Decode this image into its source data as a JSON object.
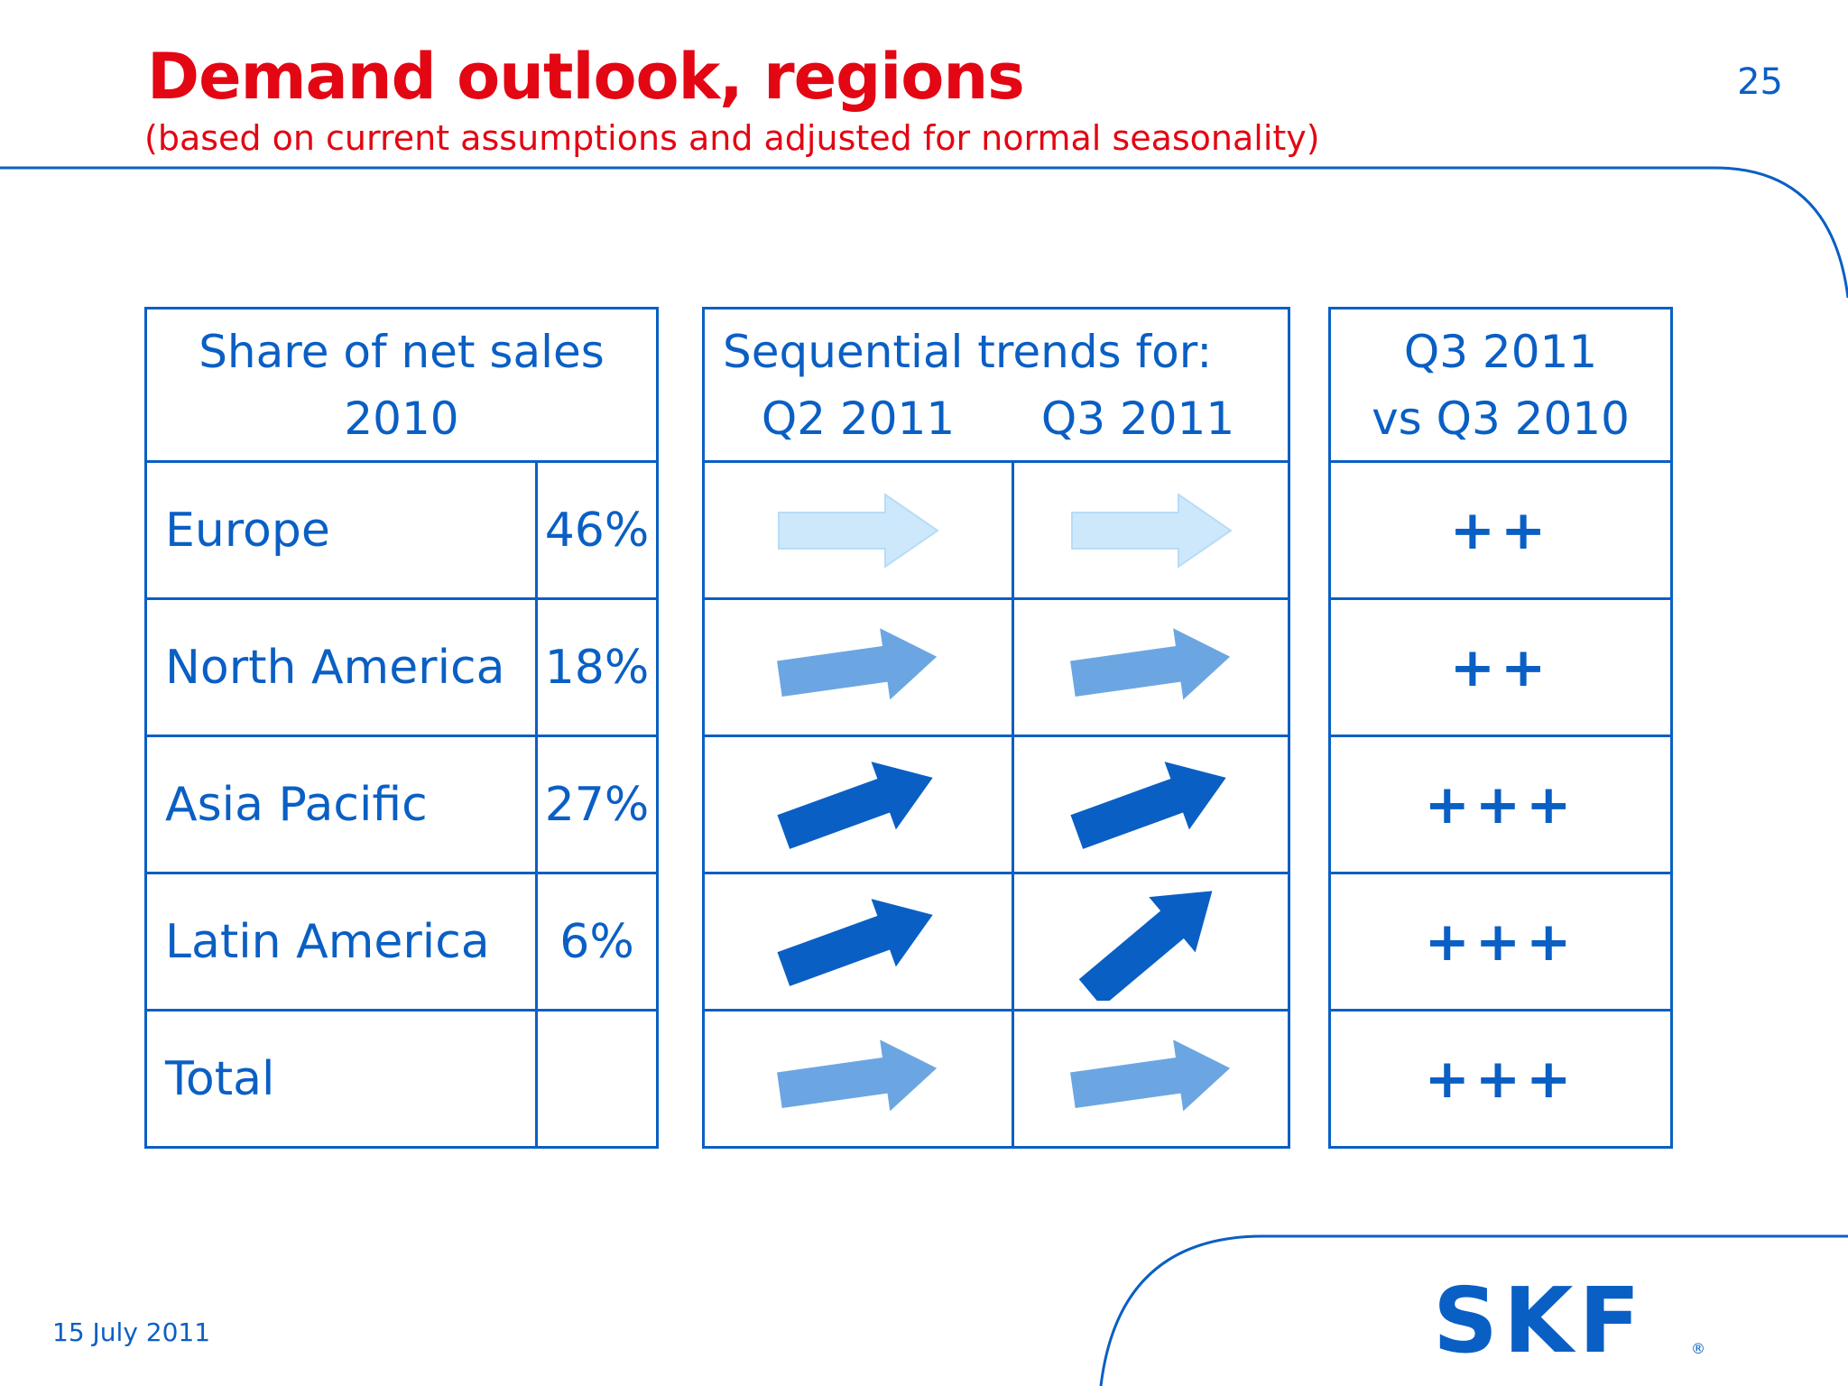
{
  "header": {
    "title": "Demand outlook, regions",
    "subtitle": "(based on current assumptions and adjusted for normal seasonality)",
    "page_number": "25"
  },
  "share_table": {
    "header_line1": "Share of net sales",
    "header_line2": "2010",
    "rows": [
      {
        "region": "Europe",
        "share": "46%"
      },
      {
        "region": "North America",
        "share": "18%"
      },
      {
        "region": "Asia Pacific",
        "share": "27%"
      },
      {
        "region": "Latin America",
        "share": "6%"
      },
      {
        "region": "Total",
        "share": ""
      }
    ]
  },
  "trends_table": {
    "header_line1": "Sequential trends for:",
    "col1": "Q2 2011",
    "col2": "Q3 2011",
    "rows": [
      {
        "q2": "flat-light",
        "q3": "flat-light"
      },
      {
        "q2": "slight-up-medium",
        "q3": "slight-up-medium"
      },
      {
        "q2": "up-dark",
        "q3": "up-dark"
      },
      {
        "q2": "up-dark",
        "q3": "steep-up-dark"
      },
      {
        "q2": "slight-up-medium",
        "q3": "slight-up-medium"
      }
    ]
  },
  "yoy_table": {
    "header_line1": "Q3 2011",
    "header_line2": "vs Q3 2010",
    "rows": [
      "++",
      "++",
      "+++",
      "+++",
      "+++"
    ]
  },
  "arrow_colors": {
    "light": "#cde8fb",
    "medium": "#6ca6e2",
    "dark": "#0a5fc4"
  },
  "footer": {
    "date": "15 July 2011",
    "logo_text": "SKF",
    "logo_mark": "®"
  }
}
